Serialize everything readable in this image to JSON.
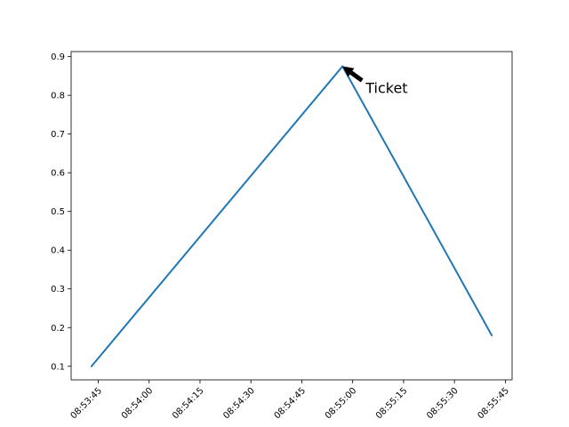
{
  "chart_data": {
    "type": "line",
    "title": "",
    "xlabel": "",
    "ylabel": "",
    "x_axis_type": "time",
    "x": [
      "08:53:43",
      "08:54:57",
      "08:55:41"
    ],
    "series": [
      {
        "values": [
          0.1,
          0.875,
          0.18
        ],
        "color": "#1f77b4"
      }
    ],
    "xlim": [
      "08:53:37",
      "08:55:47"
    ],
    "ylim": [
      0.065,
      0.913
    ],
    "x_ticks": [
      "08:53:45",
      "08:54:00",
      "08:54:15",
      "08:54:30",
      "08:54:45",
      "08:55:00",
      "08:55:15",
      "08:55:30",
      "08:55:45"
    ],
    "y_ticks": [
      0.1,
      0.2,
      0.3,
      0.4,
      0.5,
      0.6,
      0.7,
      0.8,
      0.9
    ],
    "annotations": [
      {
        "text": "Ticket",
        "x": "08:54:57",
        "y": 0.875,
        "arrow": true
      }
    ],
    "grid": false,
    "legend": false
  }
}
